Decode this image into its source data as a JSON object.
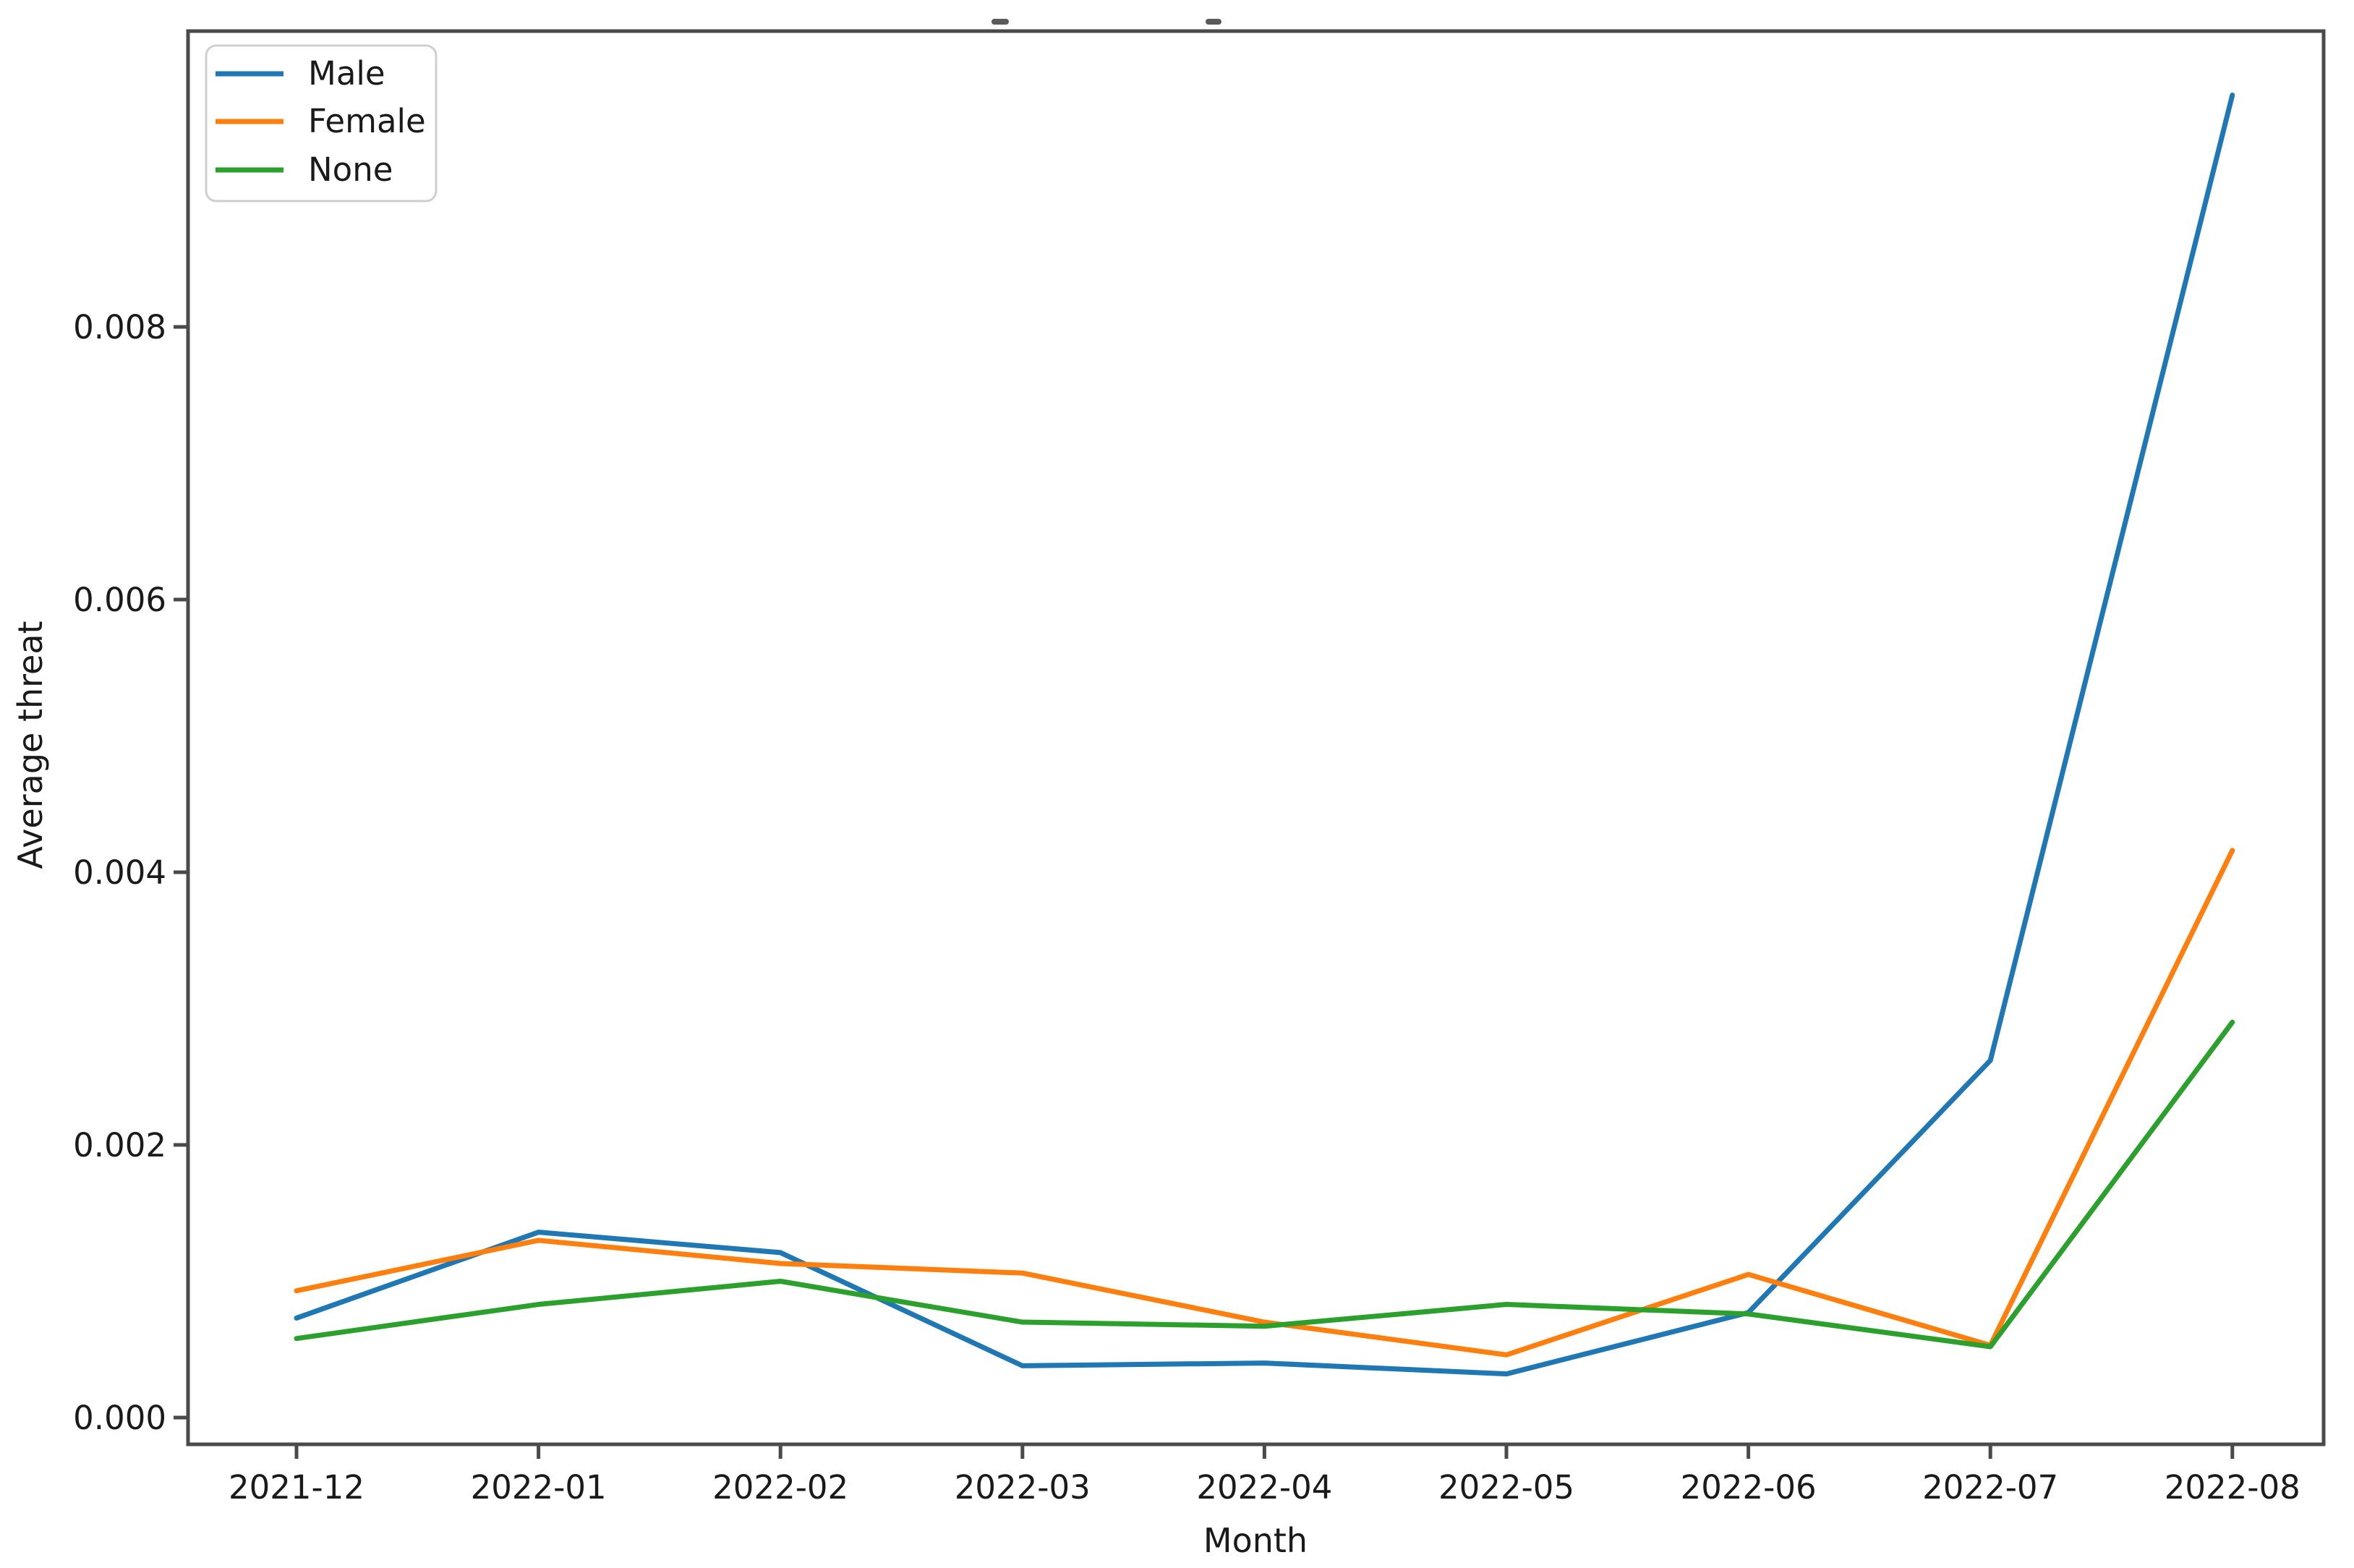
{
  "chart_data": {
    "type": "line",
    "title": "",
    "xlabel": "Month",
    "ylabel": "Average threat",
    "categories": [
      "2021-12",
      "2022-01",
      "2022-02",
      "2022-03",
      "2022-04",
      "2022-05",
      "2022-06",
      "2022-07",
      "2022-08"
    ],
    "series": [
      {
        "name": "Male",
        "color": "#1f77b4",
        "values": [
          0.00073,
          0.00136,
          0.00121,
          0.00038,
          0.0004,
          0.00032,
          0.00077,
          0.00262,
          0.0097
        ]
      },
      {
        "name": "Female",
        "color": "#ff7f0e",
        "values": [
          0.00093,
          0.0013,
          0.00113,
          0.00106,
          0.0007,
          0.00046,
          0.00105,
          0.00053,
          0.00416
        ]
      },
      {
        "name": "None",
        "color": "#2ca02c",
        "values": [
          0.00058,
          0.00083,
          0.001,
          0.0007,
          0.00067,
          0.00083,
          0.00076,
          0.00052,
          0.0029
        ]
      }
    ],
    "yticks": [
      0,
      0.002,
      0.004,
      0.006,
      0.008
    ],
    "ytick_labels": [
      "0.000",
      "0.002",
      "0.004",
      "0.006",
      "0.008"
    ],
    "ylim": [
      -0.00023,
      0.01017
    ],
    "legend_position": "upper left",
    "grid": false,
    "frame_color": "#4a4a4a",
    "legend_border_color": "#cfcfcf"
  }
}
